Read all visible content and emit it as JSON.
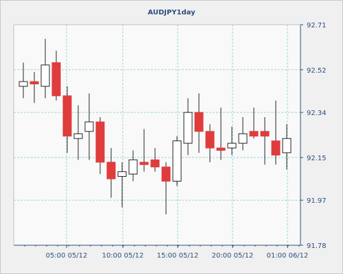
{
  "chart_data": {
    "type": "candlestick",
    "title": "AUDJPY1day",
    "xlabel": "",
    "ylabel": "",
    "ylim": [
      91.78,
      92.71
    ],
    "y_ticks": [
      "92.71",
      "92.52",
      "92.34",
      "92.15",
      "91.97",
      "91.78"
    ],
    "x_ticks": [
      "05:00 05/12",
      "10:00 05/12",
      "15:00 05/12",
      "20:00 05/12",
      "01:00 06/12"
    ],
    "grid": true,
    "legend": "none",
    "colors": {
      "up": "#ffffff",
      "down": "#e03c3c",
      "grid": "#9fd3d3",
      "axis": "#2d4f7d",
      "background": "#f9f9f9"
    },
    "candles": [
      {
        "o": 92.45,
        "h": 92.55,
        "l": 92.4,
        "c": 92.47
      },
      {
        "o": 92.47,
        "h": 92.51,
        "l": 92.38,
        "c": 92.46
      },
      {
        "o": 92.45,
        "h": 92.65,
        "l": 92.4,
        "c": 92.54
      },
      {
        "o": 92.55,
        "h": 92.6,
        "l": 92.39,
        "c": 92.41
      },
      {
        "o": 92.41,
        "h": 92.45,
        "l": 92.17,
        "c": 92.24
      },
      {
        "o": 92.23,
        "h": 92.37,
        "l": 92.14,
        "c": 92.25
      },
      {
        "o": 92.26,
        "h": 92.42,
        "l": 92.14,
        "c": 92.3
      },
      {
        "o": 92.3,
        "h": 92.32,
        "l": 92.08,
        "c": 92.13
      },
      {
        "o": 92.13,
        "h": 92.19,
        "l": 91.98,
        "c": 92.06
      },
      {
        "o": 92.07,
        "h": 92.13,
        "l": 91.94,
        "c": 92.09
      },
      {
        "o": 92.08,
        "h": 92.18,
        "l": 92.05,
        "c": 92.14
      },
      {
        "o": 92.13,
        "h": 92.27,
        "l": 92.09,
        "c": 92.12
      },
      {
        "o": 92.14,
        "h": 92.19,
        "l": 92.09,
        "c": 92.11
      },
      {
        "o": 92.11,
        "h": 92.13,
        "l": 91.91,
        "c": 92.05
      },
      {
        "o": 92.05,
        "h": 92.24,
        "l": 92.03,
        "c": 92.22
      },
      {
        "o": 92.21,
        "h": 92.4,
        "l": 92.16,
        "c": 92.34
      },
      {
        "o": 92.34,
        "h": 92.42,
        "l": 92.17,
        "c": 92.26
      },
      {
        "o": 92.26,
        "h": 92.29,
        "l": 92.13,
        "c": 92.19
      },
      {
        "o": 92.19,
        "h": 92.36,
        "l": 92.14,
        "c": 92.18
      },
      {
        "o": 92.19,
        "h": 92.28,
        "l": 92.16,
        "c": 92.21
      },
      {
        "o": 92.21,
        "h": 92.32,
        "l": 92.18,
        "c": 92.25
      },
      {
        "o": 92.26,
        "h": 92.36,
        "l": 92.23,
        "c": 92.24
      },
      {
        "o": 92.26,
        "h": 92.32,
        "l": 92.12,
        "c": 92.24
      },
      {
        "o": 92.22,
        "h": 92.39,
        "l": 92.12,
        "c": 92.16
      },
      {
        "o": 92.17,
        "h": 92.29,
        "l": 92.1,
        "c": 92.23
      }
    ]
  }
}
